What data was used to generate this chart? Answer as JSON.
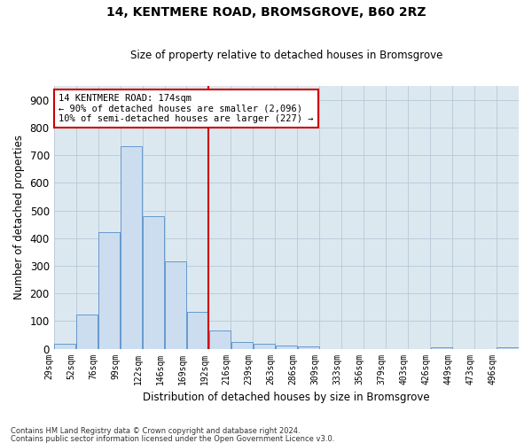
{
  "title1": "14, KENTMERE ROAD, BROMSGROVE, B60 2RZ",
  "title2": "Size of property relative to detached houses in Bromsgrove",
  "xlabel": "Distribution of detached houses by size in Bromsgrove",
  "ylabel": "Number of detached properties",
  "bar_values": [
    18,
    122,
    420,
    733,
    480,
    315,
    133,
    65,
    25,
    18,
    10,
    8,
    0,
    0,
    0,
    0,
    0,
    5,
    0,
    0,
    5
  ],
  "categories": [
    "29sqm",
    "52sqm",
    "76sqm",
    "99sqm",
    "122sqm",
    "146sqm",
    "169sqm",
    "192sqm",
    "216sqm",
    "239sqm",
    "263sqm",
    "286sqm",
    "309sqm",
    "333sqm",
    "356sqm",
    "379sqm",
    "403sqm",
    "426sqm",
    "449sqm",
    "473sqm",
    "496sqm"
  ],
  "bar_color_face": "#ccddf0",
  "bar_color_edge": "#6699cc",
  "vline_color": "#cc0000",
  "annotation_line1": "14 KENTMERE ROAD: 174sqm",
  "annotation_line2": "← 90% of detached houses are smaller (2,096)",
  "annotation_line3": "10% of semi-detached houses are larger (227) →",
  "annotation_box_color": "#cc0000",
  "ylim": [
    0,
    950
  ],
  "yticks": [
    0,
    100,
    200,
    300,
    400,
    500,
    600,
    700,
    800,
    900
  ],
  "grid_color": "#b8c8d8",
  "bg_color": "#dce8f0",
  "footer1": "Contains HM Land Registry data © Crown copyright and database right 2024.",
  "footer2": "Contains public sector information licensed under the Open Government Licence v3.0."
}
